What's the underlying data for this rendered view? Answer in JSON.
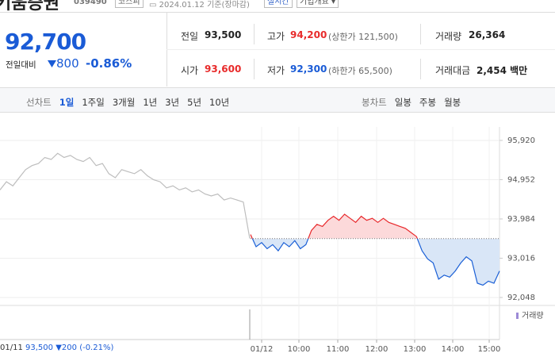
{
  "header": {
    "title": "키움증권",
    "code": "039490",
    "market": "코스피",
    "date": "2024.01.12 기준(장마감)",
    "realtime": "실시간",
    "company": "기업개요"
  },
  "price": {
    "current": "92,700",
    "change_label": "전일대비",
    "change": "800",
    "change_rate": "-0.86%"
  },
  "table": {
    "rows": [
      [
        {
          "label": "전일",
          "value": "93,500"
        },
        {
          "label": "고가",
          "value": "94,200",
          "note": "(상한가 121,500)"
        },
        {
          "label": "거래량",
          "value": "26,364"
        }
      ],
      [
        {
          "label": "시가",
          "value": "93,600"
        },
        {
          "label": "저가",
          "value": "92,300",
          "note": "(하한가 65,500)"
        },
        {
          "label": "거래대금",
          "value": "2,454 백만"
        }
      ]
    ]
  },
  "tabs": {
    "line_label": "선차트",
    "line": [
      "1일",
      "1주일",
      "3개월",
      "1년",
      "3년",
      "5년",
      "10년"
    ],
    "candle_label": "봉차트",
    "candle": [
      "일봉",
      "주봉",
      "월봉"
    ]
  },
  "chart": {
    "type": "line",
    "ylim": [
      91852,
      96252
    ],
    "yticks": [
      {
        "value": 95920,
        "label": "95,920"
      },
      {
        "value": 94952,
        "label": "94,952"
      },
      {
        "value": 93984,
        "label": "93,984"
      },
      {
        "value": 93016,
        "label": "93,016"
      },
      {
        "value": 92048,
        "label": "92,048"
      }
    ],
    "x_labels": [
      "01/12",
      "10:00",
      "11:00",
      "12:00",
      "13:00",
      "14:00",
      "15:00"
    ],
    "baseline": 93500,
    "up_color": "#e8282b",
    "down_color": "#1a5fd6",
    "up_fill": "#fcd9da",
    "down_fill": "#d9e6f7",
    "series": [
      {
        "color": "#bdbdbd",
        "values": [
          94700,
          94900,
          94800,
          95000,
          95200,
          95300,
          95350,
          95500,
          95450,
          95600,
          95500,
          95550,
          95450,
          95400,
          95500,
          95300,
          95350,
          95100,
          95000,
          95200,
          95150,
          95100,
          95200,
          95050,
          94950,
          94900,
          94750,
          94800,
          94700,
          94750,
          94650,
          94700,
          94600,
          94550,
          94600,
          94450,
          94500,
          94450,
          94400,
          93500
        ]
      },
      {
        "values": [
          93600,
          93300,
          93400,
          93250,
          93350,
          93200,
          93400,
          93300,
          93450,
          93250,
          93350,
          93700,
          93850,
          93800,
          93950,
          94050,
          93950,
          94100,
          94000,
          93900,
          94050,
          93950,
          94000,
          93900,
          94000,
          93900,
          93850,
          93800,
          93750,
          93650,
          93550,
          93200,
          93000,
          92900,
          92500,
          92600,
          92550,
          92700,
          92900,
          93050,
          92950,
          92400,
          92350,
          92450,
          92400,
          92700
        ]
      }
    ],
    "volume_label": "거래량",
    "summary": {
      "date": "01/11",
      "price": "93,500",
      "change": "200",
      "rate": "(-0.21%)"
    }
  }
}
